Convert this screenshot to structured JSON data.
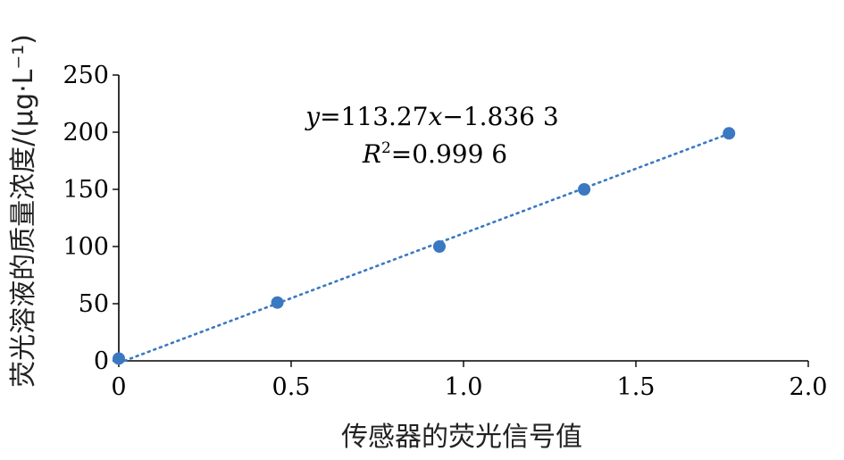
{
  "chart_data": {
    "type": "scatter",
    "xlabel": "传感器的荧光信号值",
    "ylabel": "荧光溶液的质量浓度/(μg·L⁻¹)",
    "xlim": [
      0,
      2.0
    ],
    "ylim": [
      0,
      250
    ],
    "x_ticks": [
      "0",
      "0.5",
      "1.0",
      "1.5",
      "2.0"
    ],
    "y_ticks": [
      "0",
      "50",
      "100",
      "150",
      "200",
      "250"
    ],
    "grid": false,
    "legend": "none",
    "series": [
      {
        "points": [
          {
            "x": 0.0,
            "y": 2
          },
          {
            "x": 0.46,
            "y": 51
          },
          {
            "x": 0.93,
            "y": 100
          },
          {
            "x": 1.35,
            "y": 150
          },
          {
            "x": 1.77,
            "y": 199
          }
        ],
        "color": "#3a78c2"
      }
    ],
    "trendline": {
      "type": "linear",
      "slope": 113.27,
      "intercept": -1.8363,
      "x_range": [
        0.0,
        1.77
      ],
      "equation": {
        "y_var": "y",
        "eq_part1": "=113.27",
        "x_var": "x",
        "eq_part2": "−1.836 3",
        "r_var": "R",
        "r_sup": "2",
        "r_part": "=0.999 6"
      }
    }
  }
}
